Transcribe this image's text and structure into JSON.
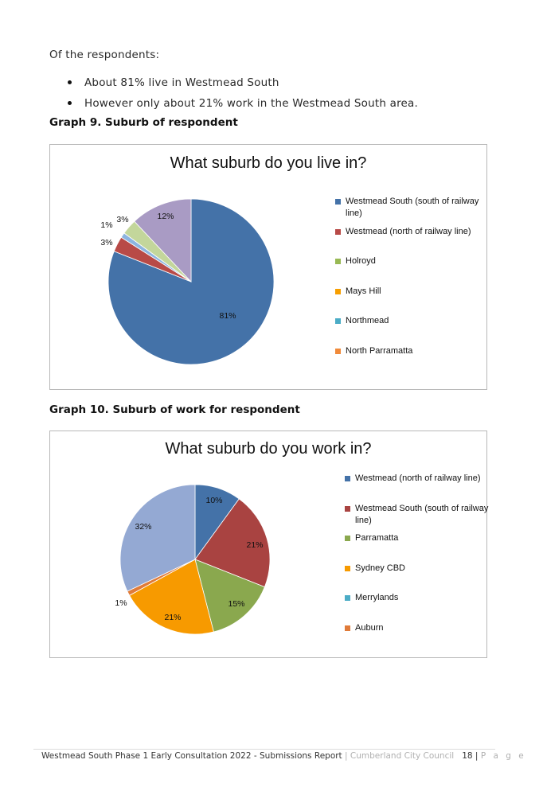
{
  "intro": "Of the respondents:",
  "bullets": [
    "About 81% live in Westmead South",
    "However only about 21% work in the Westmead South area."
  ],
  "graph9": {
    "heading": "Graph 9. Suburb of respondent",
    "chart_data": {
      "type": "pie",
      "title": "What suburb do you live in?",
      "legend_position": "right",
      "slices": [
        {
          "label": "Westmead South (south of railway line)",
          "value": 81,
          "data_label": "81%",
          "color": "#4472a8"
        },
        {
          "label": "Westmead (north of railway line)",
          "value": 3,
          "data_label": "3%",
          "color": "#b84a47"
        },
        {
          "label": "Holroyd",
          "value": 1,
          "data_label": "1%",
          "color": "#8cb4e0"
        },
        {
          "label": "Mays Hill",
          "value": 3,
          "data_label": "3%",
          "color": "#c3d69b"
        },
        {
          "label": "Northmead",
          "value": 0,
          "data_label": "",
          "color": "#4bacc6"
        },
        {
          "label": "North Parramatta",
          "value": 12,
          "data_label": "12%",
          "color": "#a99bc4"
        }
      ],
      "legend": [
        {
          "label": "Westmead South (south of railway line)",
          "color": "#4472a8"
        },
        {
          "label": "Westmead (north of railway line)",
          "color": "#b84a47"
        },
        {
          "label": "Holroyd",
          "color": "#98b954"
        },
        {
          "label": "Mays Hill",
          "color": "#f79e00"
        },
        {
          "label": "Northmead",
          "color": "#4bacc6"
        },
        {
          "label": "North Parramatta",
          "color": "#f08a3a"
        }
      ]
    }
  },
  "graph10": {
    "heading": "Graph 10. Suburb of work for respondent",
    "chart_data": {
      "type": "pie",
      "title": "What suburb do you work in?",
      "legend_position": "right",
      "slices": [
        {
          "label": "Westmead (north of railway line)",
          "value": 10,
          "data_label": "10%",
          "color": "#4472a8"
        },
        {
          "label": "Westmead South (south of railway line)",
          "value": 21,
          "data_label": "21%",
          "color": "#a94341"
        },
        {
          "label": "Parramatta",
          "value": 15,
          "data_label": "15%",
          "color": "#8aa84e"
        },
        {
          "label": "Sydney CBD",
          "value": 21,
          "data_label": "21%",
          "color": "#f79a00"
        },
        {
          "label": "Merrylands",
          "value": 0,
          "data_label": "",
          "color": "#4bacc6"
        },
        {
          "label": "Auburn",
          "value": 1,
          "data_label": "1%",
          "color": "#e07b39"
        },
        {
          "label": "",
          "value": 32,
          "data_label": "32%",
          "color": "#94a9d3"
        }
      ],
      "legend": [
        {
          "label": "Westmead (north of railway line)",
          "color": "#4472a8"
        },
        {
          "label": "Westmead South (south of railway line)",
          "color": "#a94341"
        },
        {
          "label": "Parramatta",
          "color": "#8aa84e"
        },
        {
          "label": "Sydney CBD",
          "color": "#f79a00"
        },
        {
          "label": "Merrylands",
          "color": "#4bacc6"
        },
        {
          "label": "Auburn",
          "color": "#e07b39"
        }
      ]
    }
  },
  "footer": {
    "doc_title": "Westmead South Phase 1 Early Consultation 2022 - Submissions Report",
    "separator": "|",
    "org": "Cumberland City Council",
    "page_number": "18",
    "page_word": "P a g e"
  }
}
